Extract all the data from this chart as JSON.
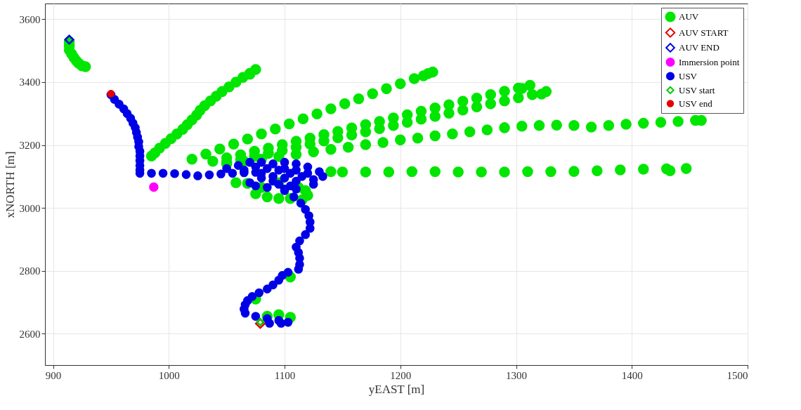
{
  "chart_data": {
    "type": "scatter",
    "xlabel": "yEAST [m]",
    "ylabel": "xNORTH [m]",
    "xlim": [
      893,
      1500
    ],
    "ylim": [
      2500,
      3650
    ],
    "xticks": [
      900,
      1000,
      1100,
      1200,
      1300,
      1400,
      1500
    ],
    "yticks": [
      2600,
      2800,
      3000,
      3200,
      3400,
      3600
    ],
    "grid": true,
    "legend": "top right",
    "series": [
      {
        "name": "AUV",
        "color": "#00e600",
        "marker": "circle",
        "x": [
          914,
          914,
          914,
          916,
          918,
          920,
          922,
          925,
          928,
          985,
          988,
          992,
          997,
          1002,
          1007,
          1012,
          1016,
          1020,
          1024,
          1027,
          1031,
          1036,
          1041,
          1046,
          1052,
          1058,
          1064,
          1070,
          1075,
          1070,
          1020,
          1032,
          1044,
          1056,
          1068,
          1080,
          1092,
          1104,
          1116,
          1128,
          1140,
          1152,
          1164,
          1176,
          1188,
          1200,
          1212,
          1224,
          1228,
          1220,
          1038,
          1050,
          1062,
          1074,
          1086,
          1098,
          1110,
          1122,
          1134,
          1146,
          1158,
          1170,
          1182,
          1194,
          1206,
          1218,
          1230,
          1242,
          1254,
          1266,
          1278,
          1290,
          1302,
          1312,
          1305,
          1050,
          1062,
          1074,
          1086,
          1098,
          1110,
          1122,
          1134,
          1146,
          1158,
          1170,
          1182,
          1194,
          1206,
          1218,
          1230,
          1242,
          1254,
          1266,
          1278,
          1290,
          1302,
          1314,
          1326,
          1322,
          1050,
          1065,
          1080,
          1095,
          1110,
          1125,
          1140,
          1155,
          1170,
          1185,
          1200,
          1215,
          1230,
          1245,
          1260,
          1275,
          1290,
          1305,
          1320,
          1335,
          1350,
          1365,
          1380,
          1395,
          1410,
          1425,
          1440,
          1455,
          1460,
          1140,
          1150,
          1170,
          1190,
          1210,
          1230,
          1250,
          1270,
          1290,
          1310,
          1330,
          1350,
          1370,
          1390,
          1410,
          1430,
          1447,
          1433,
          1058,
          1068,
          1075,
          1085,
          1095,
          1105,
          1115,
          1120,
          1118,
          1112,
          1095,
          1080,
          1085,
          1095,
          1105,
          1105,
          1075
        ],
        "values": [
          3528,
          3515,
          3502,
          3490,
          3478,
          3468,
          3460,
          3452,
          3449,
          3165,
          3175,
          3190,
          3205,
          3220,
          3235,
          3250,
          3265,
          3280,
          3295,
          3310,
          3325,
          3340,
          3355,
          3370,
          3385,
          3400,
          3415,
          3428,
          3440,
          3425,
          3155,
          3171,
          3187,
          3203,
          3219,
          3235,
          3251,
          3267,
          3283,
          3299,
          3315,
          3331,
          3347,
          3363,
          3379,
          3395,
          3411,
          3427,
          3432,
          3420,
          3148,
          3159,
          3169,
          3180,
          3190,
          3201,
          3212,
          3222,
          3233,
          3243,
          3254,
          3265,
          3275,
          3286,
          3296,
          3307,
          3318,
          3328,
          3339,
          3349,
          3360,
          3371,
          3381,
          3390,
          3380,
          3144,
          3154,
          3164,
          3173,
          3183,
          3193,
          3203,
          3213,
          3223,
          3232,
          3242,
          3252,
          3262,
          3272,
          3282,
          3291,
          3301,
          3311,
          3321,
          3331,
          3340,
          3350,
          3360,
          3370,
          3362,
          3140,
          3148,
          3155,
          3163,
          3170,
          3178,
          3186,
          3193,
          3201,
          3208,
          3216,
          3222,
          3229,
          3235,
          3242,
          3248,
          3255,
          3260,
          3262,
          3263,
          3262,
          3257,
          3262,
          3266,
          3269,
          3272,
          3275,
          3278,
          3278,
          3115,
          3114,
          3114,
          3114,
          3115,
          3115,
          3114,
          3114,
          3114,
          3115,
          3115,
          3116,
          3118,
          3121,
          3123,
          3124,
          3125,
          3118,
          3080,
          3078,
          3045,
          3035,
          3030,
          3030,
          3025,
          3040,
          3055,
          3065,
          3080,
          3065,
          2655,
          2660,
          2652,
          2780,
          2710
        ]
      },
      {
        "name": "AUV START",
        "color": "#e60000",
        "marker": "diamond",
        "x": [
          1079
        ],
        "values": [
          2632
        ]
      },
      {
        "name": "AUV END",
        "color": "#0000e6",
        "marker": "diamond",
        "x": [
          914
        ],
        "values": [
          3535
        ]
      },
      {
        "name": "Immersion point",
        "color": "#ff00ff",
        "marker": "circle",
        "x": [
          987
        ],
        "values": [
          3066
        ]
      },
      {
        "name": "USV",
        "color": "#0000e6",
        "marker": "circle",
        "x": [
          950,
          953,
          957,
          961,
          964,
          967,
          969,
          971,
          972,
          973,
          974,
          974,
          975,
          975,
          975,
          975,
          975,
          975,
          985,
          995,
          1005,
          1015,
          1025,
          1035,
          1045,
          1055,
          1065,
          1075,
          1050,
          1060,
          1070,
          1080,
          1090,
          1100,
          1110,
          1120,
          1130,
          1133,
          1125,
          1115,
          1105,
          1095,
          1085,
          1075,
          1065,
          1080,
          1090,
          1100,
          1110,
          1120,
          1125,
          1110,
          1070,
          1075,
          1085,
          1080,
          1090,
          1095,
          1100,
          1105,
          1110,
          1100,
          1100,
          1108,
          1114,
          1118,
          1121,
          1122,
          1122,
          1118,
          1113,
          1110,
          1112,
          1113,
          1113,
          1112,
          1103,
          1098,
          1095,
          1090,
          1085,
          1078,
          1072,
          1068,
          1066,
          1065,
          1066,
          1075,
          1085,
          1095,
          1103,
          1097,
          1087
        ],
        "values": [
          3360,
          3345,
          3330,
          3315,
          3300,
          3285,
          3270,
          3255,
          3240,
          3225,
          3210,
          3195,
          3180,
          3165,
          3150,
          3135,
          3120,
          3110,
          3110,
          3110,
          3109,
          3106,
          3102,
          3105,
          3108,
          3110,
          3112,
          3113,
          3125,
          3135,
          3145,
          3145,
          3140,
          3145,
          3140,
          3130,
          3115,
          3100,
          3090,
          3100,
          3110,
          3120,
          3125,
          3130,
          3120,
          3110,
          3100,
          3125,
          3120,
          3110,
          3075,
          3085,
          3080,
          3070,
          3065,
          3095,
          3085,
          3075,
          3095,
          3070,
          3060,
          3060,
          3055,
          3035,
          3015,
          2995,
          2975,
          2955,
          2935,
          2915,
          2895,
          2875,
          2858,
          2840,
          2820,
          2805,
          2795,
          2785,
          2770,
          2755,
          2742,
          2730,
          2718,
          2705,
          2692,
          2678,
          2665,
          2655,
          2648,
          2642,
          2636,
          2633,
          2633
        ]
      },
      {
        "name": "USV start",
        "color": "#00cc00",
        "marker": "diamond",
        "x": [
          1079
        ],
        "values": [
          2637
        ]
      },
      {
        "name": "USV end",
        "color": "#e60000",
        "marker": "circle",
        "x": [
          950
        ],
        "values": [
          3363
        ]
      }
    ]
  }
}
